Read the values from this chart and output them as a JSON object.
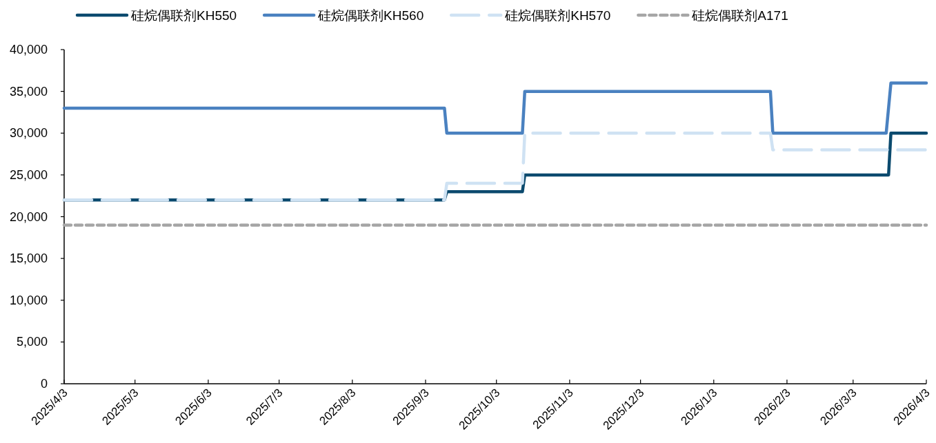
{
  "chart_data": {
    "type": "line",
    "legend": "top",
    "grid": false,
    "xlim": [
      "2025-04-03",
      "2026-04-03"
    ],
    "xticks": [
      {
        "value": "2025-04-03",
        "label": "2025/4/3"
      },
      {
        "value": "2025-05-03",
        "label": "2025/5/3"
      },
      {
        "value": "2025-06-03",
        "label": "2025/6/3"
      },
      {
        "value": "2025-07-03",
        "label": "2025/7/3"
      },
      {
        "value": "2025-08-03",
        "label": "2025/8/3"
      },
      {
        "value": "2025-09-03",
        "label": "2025/9/3"
      },
      {
        "value": "2025-10-03",
        "label": "2025/10/3"
      },
      {
        "value": "2025-11-03",
        "label": "2025/11/3"
      },
      {
        "value": "2025-12-03",
        "label": "2025/12/3"
      },
      {
        "value": "2026-01-03",
        "label": "2026/1/3"
      },
      {
        "value": "2026-02-03",
        "label": "2026/2/3"
      },
      {
        "value": "2026-03-03",
        "label": "2026/3/3"
      },
      {
        "value": "2026-04-03",
        "label": "2026/4/3"
      }
    ],
    "ylim": [
      0,
      40000
    ],
    "yticks": [
      {
        "value": 0,
        "label": "0"
      },
      {
        "value": 5000,
        "label": "5,000"
      },
      {
        "value": 10000,
        "label": "10,000"
      },
      {
        "value": 15000,
        "label": "15,000"
      },
      {
        "value": 20000,
        "label": "20,000"
      },
      {
        "value": 25000,
        "label": "25,000"
      },
      {
        "value": 30000,
        "label": "30,000"
      },
      {
        "value": 35000,
        "label": "35,000"
      },
      {
        "value": 40000,
        "label": "40,000"
      }
    ],
    "series": [
      {
        "name": "硅烷偶联剂KH550",
        "color": "#0b4a6e",
        "line_style": "solid",
        "x": [
          "2025-04-03",
          "2025-09-11",
          "2025-09-12",
          "2025-10-14",
          "2025-10-15",
          "2026-03-18",
          "2026-03-19",
          "2026-04-03"
        ],
        "values": [
          22000,
          22000,
          23000,
          23000,
          25000,
          25000,
          30000,
          30000
        ]
      },
      {
        "name": "硅烷偶联剂KH560",
        "color": "#4a81c0",
        "line_style": "solid",
        "x": [
          "2025-04-03",
          "2025-09-11",
          "2025-09-12",
          "2025-10-14",
          "2025-10-15",
          "2026-01-27",
          "2026-01-28",
          "2026-03-17",
          "2026-03-19",
          "2026-04-03"
        ],
        "values": [
          33000,
          33000,
          30000,
          30000,
          35000,
          35000,
          30000,
          30000,
          36000,
          36000
        ]
      },
      {
        "name": "硅烷偶联剂KH570",
        "color": "#cfe2f3",
        "line_style": "dashed",
        "x": [
          "2025-04-03",
          "2025-09-11",
          "2025-09-12",
          "2025-10-14",
          "2025-10-15",
          "2026-01-27",
          "2026-01-28",
          "2026-04-03"
        ],
        "values": [
          22000,
          22000,
          24000,
          24000,
          30000,
          30000,
          28000,
          28000
        ]
      },
      {
        "name": "硅烷偶联剂A171",
        "color": "#a6a6a6",
        "line_style": "dotted",
        "x": [
          "2025-04-03",
          "2026-04-03"
        ],
        "values": [
          19000,
          19000
        ]
      }
    ]
  }
}
